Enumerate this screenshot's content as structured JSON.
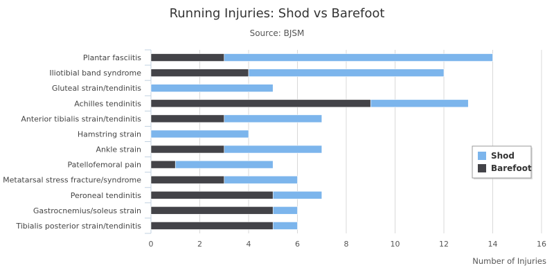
{
  "chart_data": {
    "type": "bar",
    "orientation": "horizontal",
    "stacked": true,
    "title": "Running Injuries: Shod vs Barefoot",
    "subtitle": "Source: BJSM",
    "xlabel": "Number of Injuries",
    "ylabel": "",
    "xlim": [
      0,
      16
    ],
    "xticks": [
      "0",
      "2",
      "4",
      "6",
      "8",
      "10",
      "12",
      "14",
      "16"
    ],
    "grid": true,
    "legend_position": "right",
    "categories": [
      "Plantar fasciitis",
      "Iliotibial band syndrome",
      "Gluteal strain/tendinitis",
      "Achilles tendinitis",
      "Anterior tibialis strain/tendinitis",
      "Hamstring strain",
      "Ankle strain",
      "Patellofemoral pain",
      "Metatarsal stress fracture/syndrome",
      "Peroneal tendinitis",
      "Gastrocnemius/soleus strain",
      "Tibialis posterior strain/tendinitis"
    ],
    "series": [
      {
        "name": "Shod",
        "color": "#7cb5ec",
        "values": [
          11,
          8,
          5,
          4,
          4,
          4,
          4,
          4,
          3,
          2,
          1,
          1
        ]
      },
      {
        "name": "Barefoot",
        "color": "#434348",
        "values": [
          3,
          4,
          0,
          9,
          3,
          0,
          3,
          1,
          3,
          5,
          5,
          5
        ]
      }
    ]
  }
}
